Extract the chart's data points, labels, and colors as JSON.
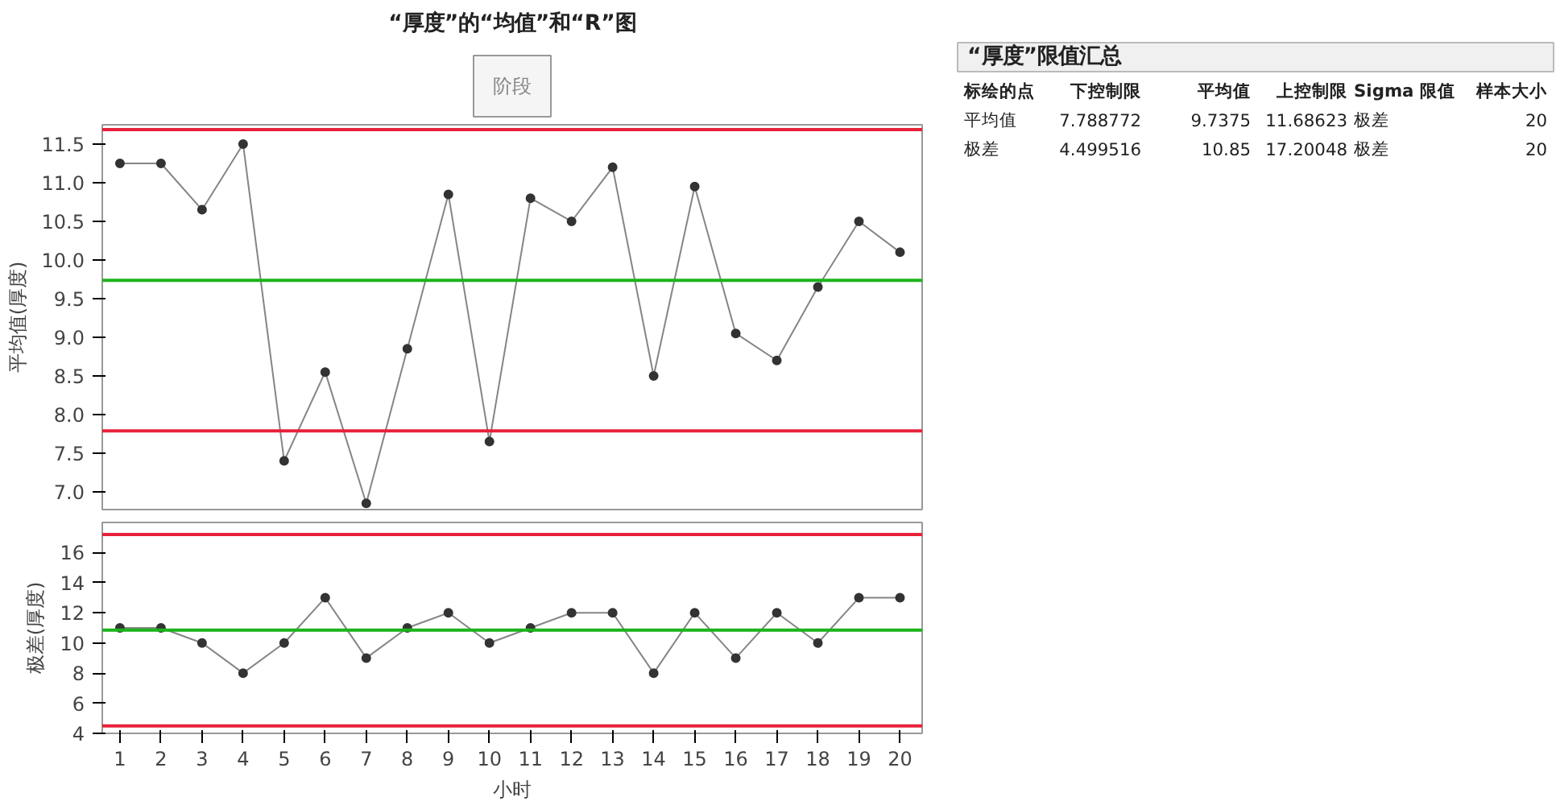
{
  "chart_data": [
    {
      "type": "line",
      "title": "“厚度”的“均值”和“R”图",
      "subtitle": "阶段",
      "ylabel": "平均值(厚度)",
      "x": [
        1,
        2,
        3,
        4,
        5,
        6,
        7,
        8,
        9,
        10,
        11,
        12,
        13,
        14,
        15,
        16,
        17,
        18,
        19,
        20
      ],
      "series": [
        {
          "color": "#333333",
          "values": [
            11.25,
            11.25,
            10.65,
            11.5,
            7.4,
            8.55,
            6.85,
            8.85,
            10.85,
            7.65,
            10.8,
            10.5,
            11.2,
            8.5,
            10.95,
            9.05,
            8.7,
            9.65,
            10.5,
            10.1
          ]
        }
      ],
      "marker": "circle",
      "xlim": [
        0.57,
        20.54
      ],
      "xticks": [
        1,
        2,
        3,
        4,
        5,
        6,
        7,
        8,
        9,
        10,
        11,
        12,
        13,
        14,
        15,
        16,
        17,
        18,
        19,
        20
      ],
      "ylim": [
        6.77,
        11.75
      ],
      "yticks": [
        {
          "value": 7,
          "label": "7.0"
        },
        7.5,
        {
          "value": 8,
          "label": "8.0"
        },
        8.5,
        {
          "value": 9,
          "label": "9.0"
        },
        9.5,
        {
          "value": 10,
          "label": "10.0"
        },
        10.5,
        {
          "value": 11,
          "label": "11.0"
        },
        11.5
      ],
      "ref_lines": [
        {
          "axis": "y",
          "value": 7.788772,
          "color": "#e8203a"
        },
        {
          "axis": "y",
          "value": 9.7375,
          "color": "#1db31d"
        },
        {
          "axis": "y",
          "value": 11.68623,
          "color": "#e8203a"
        }
      ],
      "tick_labels": "y"
    },
    {
      "type": "line",
      "ylabel": "极差(厚度)",
      "xlabel": "小时",
      "x": [
        1,
        2,
        3,
        4,
        5,
        6,
        7,
        8,
        9,
        10,
        11,
        12,
        13,
        14,
        15,
        16,
        17,
        18,
        19,
        20
      ],
      "series": [
        {
          "color": "#333333",
          "values": [
            11,
            11,
            10,
            8,
            10,
            13,
            9,
            11,
            12,
            10,
            11,
            12,
            12,
            8,
            12,
            9,
            12,
            10,
            13,
            13
          ]
        }
      ],
      "marker": "circle",
      "xlim": [
        0.57,
        20.54
      ],
      "xticks": [
        1,
        2,
        3,
        4,
        5,
        6,
        7,
        8,
        9,
        10,
        11,
        12,
        13,
        14,
        15,
        16,
        17,
        18,
        19,
        20
      ],
      "ylim": [
        4,
        18
      ],
      "yticks": [
        4,
        6,
        8,
        10,
        12,
        14,
        16
      ],
      "ref_lines": [
        {
          "axis": "y",
          "value": 4.499516,
          "color": "#e8203a"
        },
        {
          "axis": "y",
          "value": 10.85,
          "color": "#1db31d"
        },
        {
          "axis": "y",
          "value": 17.20048,
          "color": "#e8203a"
        }
      ]
    },
    {
      "type": "other",
      "title": "“厚度”限值汇总",
      "annotations": [
        "标绘的点",
        "下控制限",
        "平均值",
        "上控制限",
        "Sigma 限值",
        "样本大小",
        "平均值",
        "7.788772",
        "9.7375",
        "11.68623",
        "极差",
        "20",
        "极差",
        "4.499516",
        "10.85",
        "17.20048",
        "极差",
        "20"
      ]
    }
  ]
}
